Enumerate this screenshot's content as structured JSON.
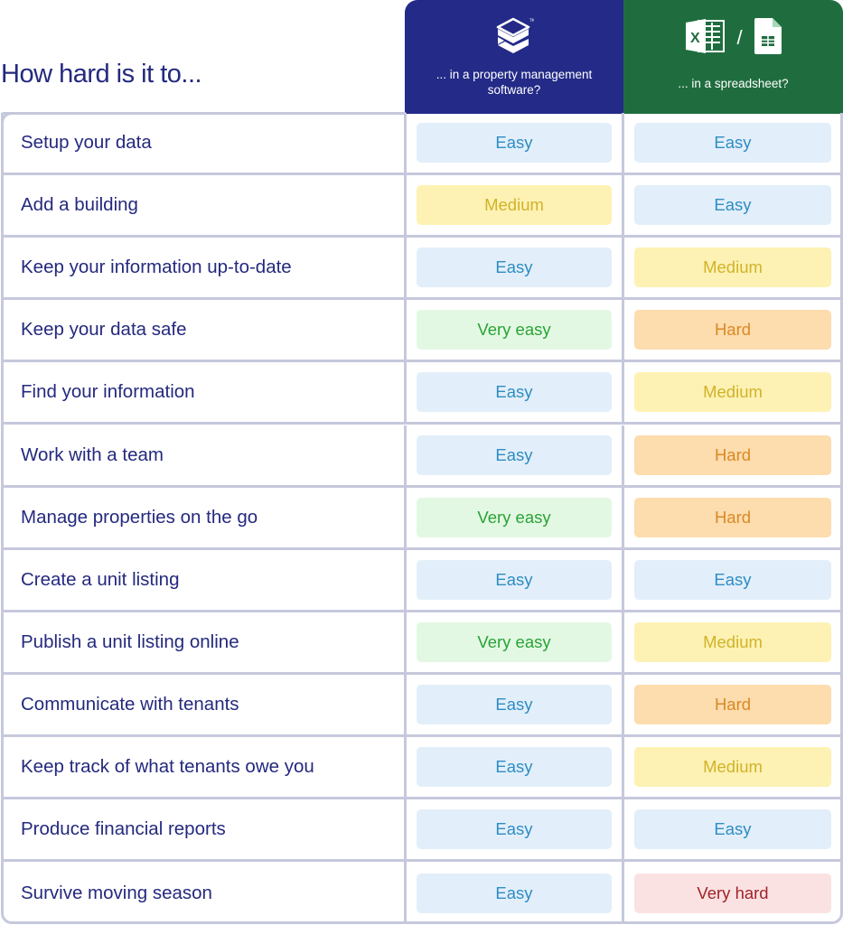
{
  "title": "How hard is it to...",
  "columns": [
    {
      "key": "pm",
      "label": "... in a property management software?",
      "icon": "stacked-layers-logo-icon",
      "background": "#232a87"
    },
    {
      "key": "ss",
      "label": "... in a spreadsheet?",
      "icon": "excel-and-google-sheets-icons",
      "separator": "/",
      "background": "#1f6d3f"
    }
  ],
  "levels": {
    "Easy": {
      "bg": "#e2effa",
      "fg": "#2f8cc4"
    },
    "Medium": {
      "bg": "#fdf2b3",
      "fg": "#d2b22a"
    },
    "Very easy": {
      "bg": "#e3f8e3",
      "fg": "#2aa336"
    },
    "Hard": {
      "bg": "#fddcad",
      "fg": "#d98a25"
    },
    "Very hard": {
      "bg": "#fbe2e2",
      "fg": "#a1232a"
    }
  },
  "rows": [
    {
      "task": "Setup your data",
      "pm": "Easy",
      "ss": "Easy"
    },
    {
      "task": "Add a building",
      "pm": "Medium",
      "ss": "Easy"
    },
    {
      "task": "Keep your information up-to-date",
      "pm": "Easy",
      "ss": "Medium"
    },
    {
      "task": "Keep your data safe",
      "pm": "Very easy",
      "ss": "Hard"
    },
    {
      "task": "Find your information",
      "pm": "Easy",
      "ss": "Medium"
    },
    {
      "task": "Work with a team",
      "pm": "Easy",
      "ss": "Hard"
    },
    {
      "task": "Manage properties on the go",
      "pm": "Very easy",
      "ss": "Hard"
    },
    {
      "task": "Create a unit listing",
      "pm": "Easy",
      "ss": "Easy"
    },
    {
      "task": "Publish a unit listing online",
      "pm": "Very easy",
      "ss": "Medium"
    },
    {
      "task": "Communicate with tenants",
      "pm": "Easy",
      "ss": "Hard"
    },
    {
      "task": "Keep track of what tenants owe you",
      "pm": "Easy",
      "ss": "Medium"
    },
    {
      "task": "Produce financial reports",
      "pm": "Easy",
      "ss": "Easy"
    },
    {
      "task": "Survive moving season",
      "pm": "Easy",
      "ss": "Very hard"
    }
  ]
}
